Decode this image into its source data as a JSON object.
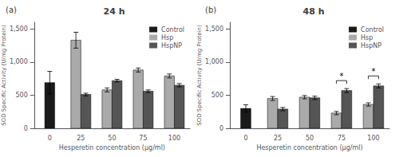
{
  "chart_data": [
    {
      "type": "bar",
      "title": "24 h",
      "annotations": [
        {
          "text": "(a)"
        }
      ],
      "xlabel": "Hesperetin concentration (µg/ml)",
      "ylabel": "SOD Specific Activity (U/mg Protein)",
      "categories": [
        "0",
        "25",
        "50",
        "75",
        "100"
      ],
      "series": [
        {
          "name": "Control",
          "color": "#1a1a1a",
          "values": [
            690,
            null,
            null,
            null,
            null
          ],
          "errors": [
            170,
            null,
            null,
            null,
            null
          ]
        },
        {
          "name": "Hsp",
          "color": "#aaaaaa",
          "values": [
            null,
            1330,
            580,
            880,
            790
          ],
          "errors": [
            null,
            120,
            30,
            30,
            30
          ]
        },
        {
          "name": "HspNP",
          "color": "#555555",
          "values": [
            null,
            510,
            720,
            560,
            650
          ],
          "errors": [
            null,
            20,
            20,
            20,
            25
          ]
        }
      ],
      "ylim": [
        0,
        1600
      ],
      "yticks": [
        0,
        500,
        1000,
        1500
      ],
      "grid": false,
      "legend": "upper right"
    },
    {
      "type": "bar",
      "title": "48 h",
      "annotations": [
        {
          "text": "(b)"
        },
        {
          "text": "*",
          "category": "75"
        },
        {
          "text": "*",
          "category": "100"
        }
      ],
      "xlabel": "Hesperetin concentration (µg/ml)",
      "ylabel": "SOD Specific Activity (U/mg Protein)",
      "categories": [
        "0",
        "25",
        "50",
        "75",
        "100"
      ],
      "series": [
        {
          "name": "Control",
          "color": "#1a1a1a",
          "values": [
            300,
            null,
            null,
            null,
            null
          ],
          "errors": [
            55,
            null,
            null,
            null,
            null
          ]
        },
        {
          "name": "Hsp",
          "color": "#aaaaaa",
          "values": [
            null,
            450,
            470,
            230,
            360
          ],
          "errors": [
            null,
            30,
            25,
            25,
            25
          ]
        },
        {
          "name": "HspNP",
          "color": "#555555",
          "values": [
            null,
            290,
            460,
            570,
            640
          ],
          "errors": [
            null,
            25,
            25,
            30,
            30
          ]
        }
      ],
      "ylim": [
        0,
        1600
      ],
      "yticks": [
        0,
        500,
        1000,
        1500
      ],
      "grid": false,
      "legend": "upper right"
    }
  ]
}
